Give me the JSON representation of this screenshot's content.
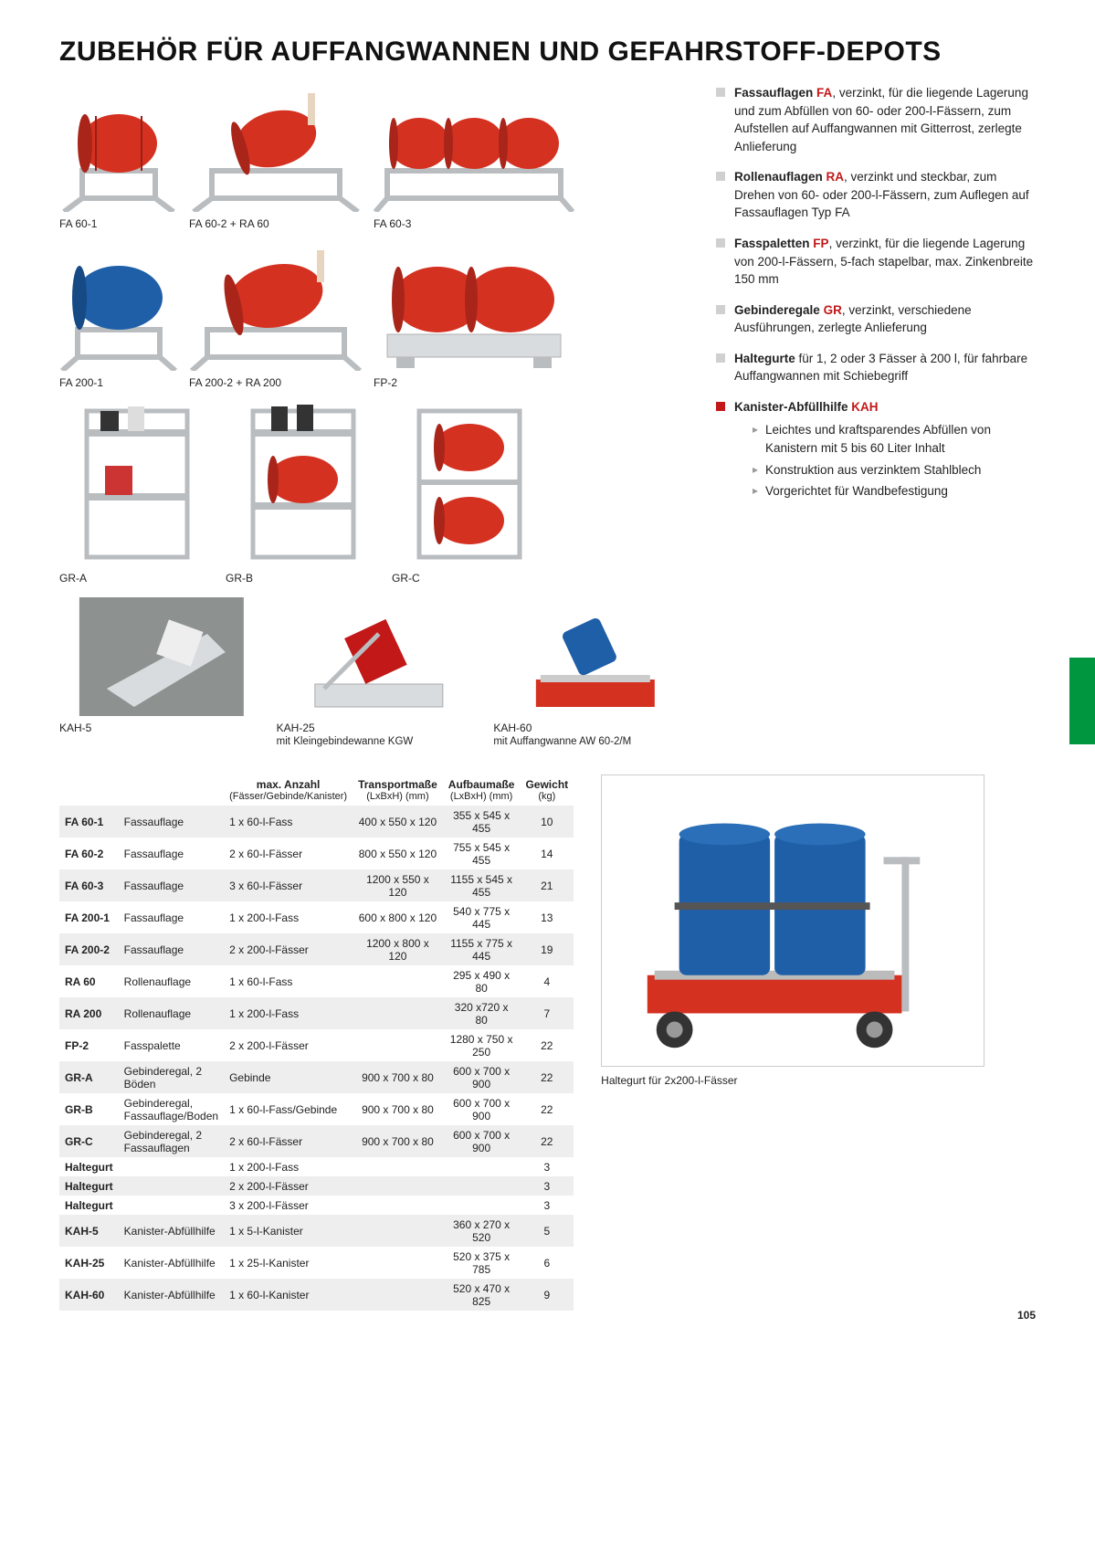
{
  "page_number": "105",
  "title": "ZUBEHÖR FÜR AUFFANGWANNEN UND GEFAHRSTOFF-DEPOTS",
  "colors": {
    "accent_red": "#c31818",
    "accent_green": "#009640",
    "drum_red": "#d43121",
    "drum_blue": "#1f5fa8",
    "steel": "#b9bdc0",
    "steel_light": "#d9dcde",
    "row_shade": "#eeeeee"
  },
  "products_row1": [
    {
      "id": "FA 60-1",
      "drums": 1,
      "color": "red"
    },
    {
      "id": "FA 60-2 + RA 60",
      "drums": 1,
      "color": "red",
      "tilt": true
    },
    {
      "id": "FA 60-3",
      "drums": 3,
      "color": "red"
    }
  ],
  "products_row2": [
    {
      "id": "FA 200-1",
      "drums": 1,
      "color": "blue"
    },
    {
      "id": "FA 200-2 + RA 200",
      "drums": 1,
      "color": "red",
      "tilt": true
    },
    {
      "id": "FP-2",
      "drums": 2,
      "color": "red"
    }
  ],
  "products_row3": [
    {
      "id": "GR-A"
    },
    {
      "id": "GR-B"
    },
    {
      "id": "GR-C"
    }
  ],
  "kah_row": [
    {
      "id": "KAH-5",
      "sub": ""
    },
    {
      "id": "KAH-25",
      "sub": "mit Kleingebindewanne KGW"
    },
    {
      "id": "KAH-60",
      "sub": "mit Auffangwanne AW 60-2/M"
    }
  ],
  "large_caption": "Haltegurt für 2x200-l-Fässer",
  "descriptions": [
    {
      "bold": "Fassauflagen",
      "code": "FA",
      "rest": ", verzinkt, für die liegende Lagerung und zum Abfüllen von 60- oder 200-l-Fässern, zum Aufstellen auf Auffangwannen mit Gitterrost, zerlegte Anlieferung"
    },
    {
      "bold": "Rollenauflagen",
      "code": "RA",
      "rest": ", verzinkt und steckbar, zum Drehen von 60- oder 200-l-Fässern, zum Auflegen auf Fassauflagen Typ FA"
    },
    {
      "bold": "Fasspaletten",
      "code": "FP",
      "rest": ", verzinkt, für die liegende Lagerung von 200-l-Fässern, 5-fach stapelbar, max. Zinkenbreite 150 mm"
    },
    {
      "bold": "Gebinderegale",
      "code": "GR",
      "rest": ", verzinkt, verschiedene Ausführungen, zerlegte Anlieferung"
    },
    {
      "bold": "Haltegurte",
      "code": "",
      "rest": " für 1, 2 oder 3 Fässer à 200 l, für fahrbare Auffangwannen mit Schiebegriff"
    }
  ],
  "kah_title": {
    "bold": "Kanister-Abfüllhilfe",
    "code": "KAH"
  },
  "kah_bullets": [
    "Leichtes und kraftsparendes Abfüllen von Kanistern mit 5 bis 60 Liter Inhalt",
    "Konstruktion aus verzinktem Stahlblech",
    "Vorgerichtet für Wandbefestigung"
  ],
  "table": {
    "headers": {
      "col1": "",
      "col2": "",
      "col3": {
        "line1": "max. Anzahl",
        "line2": "(Fässer/Gebinde/Kanister)"
      },
      "col4": {
        "line1": "Transportmaße",
        "line2": "(LxBxH) (mm)"
      },
      "col5": {
        "line1": "Aufbaumaße",
        "line2": "(LxBxH) (mm)"
      },
      "col6": {
        "line1": "Gewicht",
        "line2": "(kg)"
      }
    },
    "rows": [
      {
        "shade": true,
        "c": [
          "FA 60-1",
          "Fassauflage",
          "1 x 60-l-Fass",
          "400 x 550 x 120",
          "355 x 545 x 455",
          "10"
        ]
      },
      {
        "shade": false,
        "c": [
          "FA 60-2",
          "Fassauflage",
          "2 x 60-l-Fässer",
          "800 x 550 x 120",
          "755 x 545 x 455",
          "14"
        ]
      },
      {
        "shade": true,
        "c": [
          "FA 60-3",
          "Fassauflage",
          "3 x 60-l-Fässer",
          "1200 x 550 x 120",
          "1155 x 545 x 455",
          "21"
        ]
      },
      {
        "shade": false,
        "c": [
          "FA 200-1",
          "Fassauflage",
          "1 x 200-l-Fass",
          "600 x 800 x 120",
          "540 x 775 x 445",
          "13"
        ]
      },
      {
        "shade": true,
        "c": [
          "FA 200-2",
          "Fassauflage",
          "2 x 200-l-Fässer",
          "1200 x 800 x 120",
          "1155 x 775 x 445",
          "19"
        ]
      },
      {
        "shade": false,
        "c": [
          "RA 60",
          "Rollenauflage",
          "1 x 60-l-Fass",
          "",
          "295 x 490 x 80",
          "4"
        ]
      },
      {
        "shade": true,
        "c": [
          "RA 200",
          "Rollenauflage",
          "1 x 200-l-Fass",
          "",
          "320 x720 x  80",
          "7"
        ]
      },
      {
        "shade": false,
        "c": [
          "FP-2",
          "Fasspalette",
          "2 x 200-l-Fässer",
          "",
          "1280 x 750 x 250",
          "22"
        ]
      },
      {
        "shade": true,
        "c": [
          "GR-A",
          "Gebinderegal, 2 Böden",
          "Gebinde",
          "900 x 700 x 80",
          "600 x 700 x 900",
          "22"
        ]
      },
      {
        "shade": false,
        "c": [
          "GR-B",
          "Gebinderegal, Fassauflage/Boden",
          "1 x 60-l-Fass/Gebinde",
          "900 x 700 x 80",
          "600 x 700 x 900",
          "22"
        ]
      },
      {
        "shade": true,
        "c": [
          "GR-C",
          "Gebinderegal, 2 Fassauflagen",
          "2 x 60-l-Fässer",
          "900 x 700 x 80",
          "600 x 700 x 900",
          "22"
        ]
      },
      {
        "shade": false,
        "c": [
          "Haltegurt",
          "",
          "1 x 200-l-Fass",
          "",
          "",
          "3"
        ]
      },
      {
        "shade": true,
        "c": [
          "Haltegurt",
          "",
          "2 x 200-l-Fässer",
          "",
          "",
          "3"
        ]
      },
      {
        "shade": false,
        "c": [
          "Haltegurt",
          "",
          "3 x 200-l-Fässer",
          "",
          "",
          "3"
        ]
      },
      {
        "shade": true,
        "c": [
          "KAH-5",
          "Kanister-Abfüllhilfe",
          "1 x 5-l-Kanister",
          "",
          "360 x 270 x 520",
          "5"
        ]
      },
      {
        "shade": false,
        "c": [
          "KAH-25",
          "Kanister-Abfüllhilfe",
          "1 x 25-l-Kanister",
          "",
          "520 x 375 x 785",
          "6"
        ]
      },
      {
        "shade": true,
        "c": [
          "KAH-60",
          "Kanister-Abfüllhilfe",
          "1 x 60-l-Kanister",
          "",
          "520 x 470 x 825",
          "9"
        ]
      }
    ]
  }
}
